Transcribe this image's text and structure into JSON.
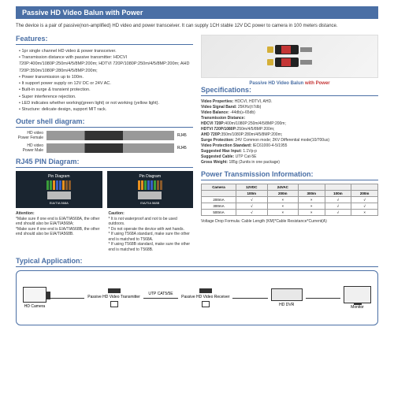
{
  "header": {
    "title": "Passive HD Video Balun with Power"
  },
  "intro": "The device is a pair of passive(non-amplified) HD video and power transceiver. It can supply 1CH stable 12V DC power to camera in 100 meters distance.",
  "features": {
    "title": "Features:",
    "items": [
      "1pr single channel HD video & power transceiver.",
      "Transmission distance with passive transmitter: HDCVI 720P:400m/1080P:250m/4/5/8MP:200m; HDTVI 720P/1080P:250m/4/5/8MP:200m; AHD 720P:350m/1080P:280m/4/5/8MP:200m;",
      "Power transmission up to 100m.",
      "It support power supply on 12V DC or 24V AC.",
      "Built-in surge & transient protection.",
      "Super interference rejection.",
      "LED indicates whether working(green light) or not working (yellow light).",
      "Structure: delicate design, support MIT rack."
    ]
  },
  "product": {
    "caption_prefix": "Passive HD Video Balun",
    "caption_suffix": "with Power"
  },
  "specs": {
    "title": "Specifications:",
    "lines": [
      "Video Properties: HDCVI, HDTVI, AHD.",
      "Video Signal Band: 25KHz(±7db)",
      "Video Balance: -44db(≥-65db)",
      "Transmission Distance:",
      "HDCVI 720P:400m/1080P:250m/4/5/8MP:200m;",
      "HDTVI 720P/1080P:250m/4/5/8MP:200m;",
      "AHD 720P:350m/1080P:280m/4/5/8MP:200m;",
      "Surge Protection: 24V Common mode; 2KV Differential mode(10/700us)",
      "Video Protection Standard: IEC61000-4-5/1955",
      "Suggested Max Input: 1.1Vp-p",
      "Suggested Cable: UTP Cat-5E",
      "Gross Weight: 185g (2units in one package)"
    ]
  },
  "outer_shell": {
    "title": "Outer shell diagram:",
    "rows": [
      {
        "l1": "HD video",
        "l2": "Power Female",
        "end": "RJ45"
      },
      {
        "l1": "HD video",
        "l2": "Power Male",
        "end": "RJ45"
      }
    ]
  },
  "rj45": {
    "title": "RJ45 PIN Diagram:",
    "blocks": [
      {
        "name": "Pin Diagram",
        "std": "EIA/TIA 568A",
        "colors": [
          "#3a9e3a",
          "#3a9e3a",
          "#e89020",
          "#3860c4",
          "#3860c4",
          "#e89020",
          "#8b5a2b",
          "#8b5a2b"
        ]
      },
      {
        "name": "Pin Diagram",
        "std": "EIA/TIA 568B",
        "colors": [
          "#e89020",
          "#e89020",
          "#3a9e3a",
          "#3860c4",
          "#3860c4",
          "#3a9e3a",
          "#8b5a2b",
          "#8b5a2b"
        ]
      }
    ],
    "attention_title": "Attention:",
    "attention": [
      "*Make sure if one end is EIA/TIA568A, the other end should also be EIA/TIA568A;",
      "*Make sure if one end is EIA/TIA568B, the other end should also be EIA/TIA568B."
    ],
    "caution_title": "Caution:",
    "caution": [
      "* It is not waterproof and not to be used outdoors.",
      "* Do not operate the device with wet hands.",
      "* If using T568A standard, make sure the other end is matched to T568A.",
      "* If using T568B standard, make sure the other end is matched to T568B."
    ]
  },
  "power_trans": {
    "title": "Power Transmission Information:",
    "headers": [
      "Camera",
      "12VDC",
      "24VAC",
      "",
      "",
      ""
    ],
    "sub": [
      "",
      "100m",
      "200m",
      "300m",
      "100m",
      "200m"
    ],
    "rows": [
      [
        "200mA",
        "√",
        "×",
        "×",
        "√",
        "√"
      ],
      [
        "300mA",
        "√",
        "×",
        "×",
        "√",
        "√"
      ],
      [
        "500mA",
        "√",
        "×",
        "×",
        "√",
        "×"
      ]
    ],
    "note": "Voltage Drop Formula: Cable Length (KM)*Cable Resistance*Current(A)"
  },
  "typical": {
    "title": "Typical Application:",
    "camera": "HD Camera",
    "dvr": "HD DVR",
    "monitor": "Monitor",
    "tx": "Passive HD Video Transmitter",
    "rx": "Passive HD Video Receiver",
    "cable": "UTP CAT5/5E"
  }
}
